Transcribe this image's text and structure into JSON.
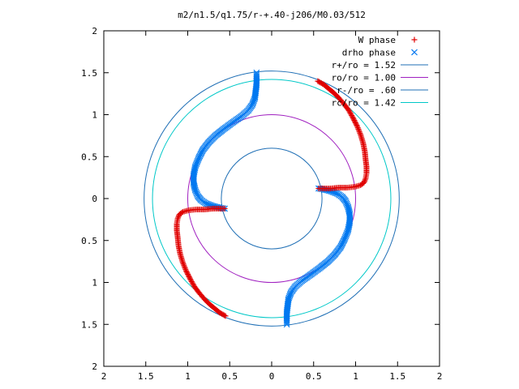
{
  "chart_data": {
    "type": "scatter",
    "title": "m2/n1.5/q1.75/r-+.40-j206/M0.03/512",
    "xlabel": "",
    "ylabel": "",
    "xlim": [
      -2,
      2
    ],
    "ylim": [
      -2,
      2
    ],
    "grid": false,
    "legend_position": "top-right",
    "x_ticks": [
      -2,
      -1.5,
      -1,
      -0.5,
      0,
      0.5,
      1,
      1.5,
      2
    ],
    "y_ticks": [
      -2,
      -1.5,
      -1,
      -0.5,
      0,
      0.5,
      1,
      1.5,
      2
    ],
    "x_tick_labels": [
      "2",
      "1.5",
      "1",
      "0.5",
      "0",
      "0.5",
      "1",
      "1.5",
      "2"
    ],
    "y_tick_labels": [
      "2",
      "1.5",
      "1",
      "0.5",
      "0",
      "0.5",
      "1",
      "1.5",
      "2"
    ],
    "circles": [
      {
        "name": "r+/ro = 1.52",
        "radius": 1.52,
        "color": "#1f6fb5"
      },
      {
        "name": "ro/ro = 1.00",
        "radius": 1.0,
        "color": "#a020c0"
      },
      {
        "name": "r-/ro = .60",
        "radius": 0.6,
        "color": "#1f6fb5"
      },
      {
        "name": "rc/ro = 1.42",
        "radius": 1.42,
        "color": "#00c8c8"
      }
    ],
    "series": [
      {
        "name": "W phase",
        "marker": "+",
        "color": "#e00000",
        "x": [
          0.55,
          0.62,
          0.68,
          0.74,
          0.8,
          0.86,
          0.92,
          0.97,
          1.02,
          1.06,
          1.09,
          1.11,
          1.12,
          1.13,
          1.13,
          1.12,
          1.1,
          1.06,
          0.99,
          0.9,
          0.8,
          0.7,
          0.6,
          0.56,
          -0.56,
          -0.6,
          -0.7,
          -0.8,
          -0.9,
          -0.99,
          -1.06,
          -1.1,
          -1.12,
          -1.13,
          -1.13,
          -1.12,
          -1.11,
          -1.09,
          -1.06,
          -1.02,
          -0.97,
          -0.92,
          -0.86,
          -0.8,
          -0.74,
          -0.68,
          -0.62,
          -0.55
        ],
        "y": [
          1.4,
          1.36,
          1.31,
          1.26,
          1.2,
          1.13,
          1.05,
          0.96,
          0.86,
          0.76,
          0.66,
          0.56,
          0.46,
          0.38,
          0.3,
          0.24,
          0.19,
          0.16,
          0.14,
          0.13,
          0.13,
          0.12,
          0.12,
          0.12,
          -0.12,
          -0.12,
          -0.12,
          -0.13,
          -0.13,
          -0.14,
          -0.16,
          -0.19,
          -0.24,
          -0.3,
          -0.38,
          -0.46,
          -0.56,
          -0.66,
          -0.76,
          -0.86,
          -0.96,
          -1.05,
          -1.13,
          -1.2,
          -1.26,
          -1.31,
          -1.36,
          -1.4
        ]
      },
      {
        "name": "drho phase",
        "marker": "x",
        "color": "#0078f0",
        "x": [
          0.56,
          0.62,
          0.7,
          0.78,
          0.84,
          0.88,
          0.91,
          0.93,
          0.93,
          0.91,
          0.87,
          0.82,
          0.75,
          0.67,
          0.57,
          0.46,
          0.36,
          0.28,
          0.23,
          0.2,
          0.19,
          0.18,
          0.18,
          0.18,
          -0.56,
          -0.62,
          -0.7,
          -0.78,
          -0.84,
          -0.88,
          -0.91,
          -0.93,
          -0.93,
          -0.91,
          -0.87,
          -0.82,
          -0.75,
          -0.67,
          -0.57,
          -0.46,
          -0.36,
          -0.28,
          -0.23,
          -0.2,
          -0.19,
          -0.18,
          -0.18,
          -0.18
        ],
        "y": [
          0.12,
          0.11,
          0.09,
          0.06,
          0.02,
          -0.03,
          -0.1,
          -0.18,
          -0.28,
          -0.38,
          -0.48,
          -0.58,
          -0.67,
          -0.75,
          -0.83,
          -0.91,
          -0.98,
          -1.05,
          -1.12,
          -1.2,
          -1.28,
          -1.36,
          -1.44,
          -1.5,
          -0.12,
          -0.11,
          -0.09,
          -0.06,
          -0.02,
          0.03,
          0.1,
          0.18,
          0.28,
          0.38,
          0.48,
          0.58,
          0.67,
          0.75,
          0.83,
          0.91,
          0.98,
          1.05,
          1.12,
          1.2,
          1.28,
          1.36,
          1.44,
          1.5
        ]
      }
    ]
  }
}
